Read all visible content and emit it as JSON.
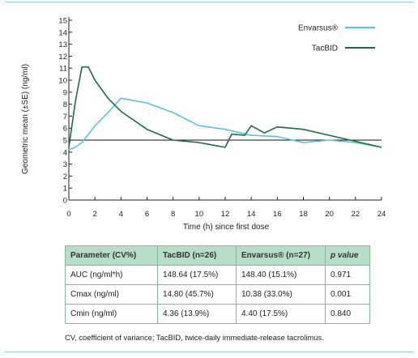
{
  "chart_data": {
    "type": "line",
    "xlabel": "Time (h) since first dose",
    "ylabel": "Geometric mean (±SE) (ng/ml)",
    "xlim": [
      0,
      24
    ],
    "ylim": [
      0,
      15
    ],
    "x_ticks": [
      0,
      2,
      4,
      6,
      8,
      10,
      12,
      14,
      16,
      18,
      20,
      22,
      24
    ],
    "y_ticks": [
      0,
      1,
      2,
      3,
      4,
      5,
      6,
      7,
      8,
      9,
      10,
      11,
      12,
      13,
      14,
      15
    ],
    "reference_line": {
      "y": 5
    },
    "legend_position": "top-right",
    "series": [
      {
        "name": "Envarsus®",
        "color": "#5bc2dc",
        "x": [
          0,
          0.5,
          1,
          1.5,
          2,
          3,
          4,
          6,
          8,
          10,
          12,
          14,
          16,
          18,
          20,
          22,
          24
        ],
        "y": [
          4.2,
          4.4,
          4.8,
          5.5,
          6.2,
          7.3,
          8.5,
          8.1,
          7.3,
          6.2,
          5.9,
          5.4,
          5.3,
          4.8,
          5.0,
          4.8,
          4.4
        ]
      },
      {
        "name": "TacBID",
        "color": "#1f6a44",
        "x": [
          0,
          0.5,
          1,
          1.5,
          2,
          3,
          4,
          6,
          8,
          10,
          12,
          12.5,
          13.5,
          14,
          15,
          16,
          18,
          20,
          22,
          24
        ],
        "y": [
          4.4,
          8.2,
          11.1,
          11.1,
          10.0,
          8.5,
          7.4,
          5.9,
          5.0,
          4.8,
          4.4,
          5.5,
          5.4,
          6.2,
          5.6,
          6.1,
          5.9,
          5.4,
          4.9,
          4.4
        ]
      }
    ]
  },
  "table": {
    "headers": [
      "Parameter (CV%)",
      "TacBID (n=26)",
      "Envarsus® (n=27)",
      "p value"
    ],
    "rows": [
      [
        "AUC (ng/ml*h)",
        "148.64 (17.5%)",
        "148.40 (15.1%)",
        "0.971"
      ],
      [
        "Cmax (ng/ml)",
        "14.80 (45.7%)",
        "10.38 (33.0%)",
        "0.001"
      ],
      [
        "Cmin (ng/ml)",
        "4.36 (13.9%)",
        "4.40 (17.5%)",
        "0.840"
      ]
    ]
  },
  "caption": "CV, coefficient of variance; TacBID, twice-daily immediate-release tacrolimus."
}
